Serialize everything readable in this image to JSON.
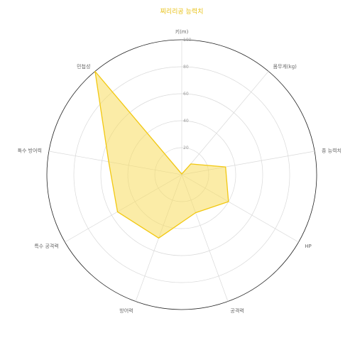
{
  "chart_data": {
    "type": "radar",
    "title": "찌리리공 능력치",
    "axes": [
      "키(m)",
      "몸무게(kg)",
      "종 능력치",
      "HP",
      "공격력",
      "방어력",
      "특수 공격력",
      "특수 방어력",
      "민첩성"
    ],
    "rlim": [
      0,
      100
    ],
    "ticks": [
      20,
      40,
      60,
      80,
      100
    ],
    "tick_labels": [
      "20",
      "40",
      "60",
      "80",
      "100"
    ],
    "series": [
      {
        "values": [
          0.5,
          10.4,
          33,
          40,
          30,
          50,
          55,
          55,
          100
        ]
      }
    ],
    "grid": true,
    "colors": {
      "series_stroke": "#f2c811",
      "series_fill": "#f7dd5e",
      "grid": "#d9d9d9",
      "outer": "#222222",
      "title": "#e8c21a"
    }
  }
}
